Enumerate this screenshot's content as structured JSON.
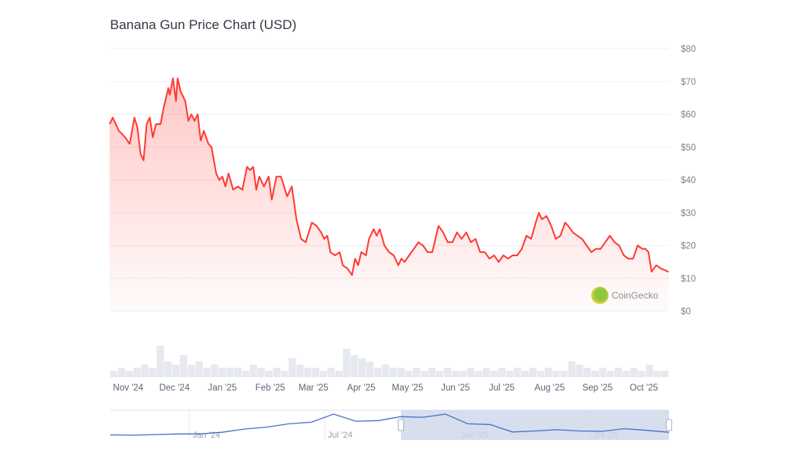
{
  "chart_data": {
    "type": "area",
    "title": "Banana Gun Price Chart (USD)",
    "ylim": [
      0,
      80
    ],
    "y_ticks": [
      "$0",
      "$10",
      "$20",
      "$30",
      "$40",
      "$50",
      "$60",
      "$70",
      "$80"
    ],
    "y_tick_values": [
      0,
      10,
      20,
      30,
      40,
      50,
      60,
      70,
      80
    ],
    "x_ticks": [
      {
        "label": "Nov '24",
        "date": "2024-11-01"
      },
      {
        "label": "Dec '24",
        "date": "2024-12-01"
      },
      {
        "label": "Jan '25",
        "date": "2025-01-01"
      },
      {
        "label": "Feb '25",
        "date": "2025-02-01"
      },
      {
        "label": "Mar '25",
        "date": "2025-03-01"
      },
      {
        "label": "Apr '25",
        "date": "2025-04-01"
      },
      {
        "label": "May '25",
        "date": "2025-05-01"
      },
      {
        "label": "Jun '25",
        "date": "2025-06-01"
      },
      {
        "label": "Jul '25",
        "date": "2025-07-01"
      },
      {
        "label": "Aug '25",
        "date": "2025-08-01"
      },
      {
        "label": "Sep '25",
        "date": "2025-09-01"
      },
      {
        "label": "Oct '25",
        "date": "2025-10-01"
      }
    ],
    "grid": true,
    "line_color": "#ff3a33",
    "volume_color": "#e6e9ee",
    "navigator_color": "#4a6fc6",
    "navigator_selection_color": "#cdd6ea",
    "series": [
      {
        "values": [
          [
            "2024-10-20",
            57
          ],
          [
            "2024-10-22",
            59
          ],
          [
            "2024-10-26",
            55
          ],
          [
            "2024-10-30",
            53
          ],
          [
            "2024-11-02",
            51
          ],
          [
            "2024-11-05",
            59
          ],
          [
            "2024-11-07",
            56
          ],
          [
            "2024-11-09",
            48
          ],
          [
            "2024-11-11",
            46
          ],
          [
            "2024-11-13",
            57
          ],
          [
            "2024-11-15",
            59
          ],
          [
            "2024-11-17",
            53
          ],
          [
            "2024-11-19",
            57
          ],
          [
            "2024-11-22",
            57
          ],
          [
            "2024-11-24",
            62
          ],
          [
            "2024-11-27",
            68
          ],
          [
            "2024-11-28",
            66
          ],
          [
            "2024-11-30",
            71
          ],
          [
            "2024-12-02",
            64
          ],
          [
            "2024-12-03",
            71
          ],
          [
            "2024-12-05",
            67
          ],
          [
            "2024-12-08",
            64
          ],
          [
            "2024-12-10",
            58
          ],
          [
            "2024-12-12",
            60
          ],
          [
            "2024-12-14",
            58
          ],
          [
            "2024-12-16",
            60
          ],
          [
            "2024-12-18",
            52
          ],
          [
            "2024-12-20",
            55
          ],
          [
            "2024-12-23",
            51
          ],
          [
            "2024-12-25",
            50
          ],
          [
            "2024-12-28",
            42
          ],
          [
            "2024-12-30",
            40
          ],
          [
            "2025-01-01",
            41
          ],
          [
            "2025-01-03",
            38
          ],
          [
            "2025-01-05",
            42
          ],
          [
            "2025-01-08",
            37
          ],
          [
            "2025-01-11",
            38
          ],
          [
            "2025-01-14",
            37
          ],
          [
            "2025-01-17",
            44
          ],
          [
            "2025-01-19",
            43
          ],
          [
            "2025-01-21",
            44
          ],
          [
            "2025-01-23",
            37
          ],
          [
            "2025-01-25",
            41
          ],
          [
            "2025-01-28",
            38
          ],
          [
            "2025-01-31",
            41
          ],
          [
            "2025-02-02",
            34
          ],
          [
            "2025-02-05",
            41
          ],
          [
            "2025-02-08",
            41
          ],
          [
            "2025-02-12",
            35
          ],
          [
            "2025-02-15",
            38
          ],
          [
            "2025-02-18",
            28
          ],
          [
            "2025-02-21",
            22
          ],
          [
            "2025-02-24",
            21
          ],
          [
            "2025-02-26",
            24
          ],
          [
            "2025-02-28",
            27
          ],
          [
            "2025-03-03",
            26
          ],
          [
            "2025-03-06",
            24
          ],
          [
            "2025-03-08",
            22
          ],
          [
            "2025-03-10",
            23
          ],
          [
            "2025-03-12",
            18
          ],
          [
            "2025-03-15",
            17
          ],
          [
            "2025-03-18",
            18
          ],
          [
            "2025-03-20",
            14
          ],
          [
            "2025-03-23",
            13
          ],
          [
            "2025-03-26",
            11
          ],
          [
            "2025-03-28",
            16
          ],
          [
            "2025-03-30",
            14
          ],
          [
            "2025-04-01",
            18
          ],
          [
            "2025-04-04",
            17
          ],
          [
            "2025-04-06",
            22
          ],
          [
            "2025-04-09",
            25
          ],
          [
            "2025-04-11",
            23
          ],
          [
            "2025-04-13",
            25
          ],
          [
            "2025-04-16",
            20
          ],
          [
            "2025-04-19",
            18
          ],
          [
            "2025-04-22",
            17
          ],
          [
            "2025-04-25",
            14
          ],
          [
            "2025-04-27",
            16
          ],
          [
            "2025-04-29",
            15
          ],
          [
            "2025-05-02",
            17
          ],
          [
            "2025-05-05",
            19
          ],
          [
            "2025-05-08",
            21
          ],
          [
            "2025-05-11",
            20
          ],
          [
            "2025-05-14",
            18
          ],
          [
            "2025-05-17",
            18
          ],
          [
            "2025-05-19",
            22
          ],
          [
            "2025-05-21",
            26
          ],
          [
            "2025-05-24",
            24
          ],
          [
            "2025-05-27",
            21
          ],
          [
            "2025-05-30",
            21
          ],
          [
            "2025-06-02",
            24
          ],
          [
            "2025-06-05",
            22
          ],
          [
            "2025-06-08",
            24
          ],
          [
            "2025-06-11",
            21
          ],
          [
            "2025-06-14",
            22
          ],
          [
            "2025-06-17",
            18
          ],
          [
            "2025-06-20",
            18
          ],
          [
            "2025-06-23",
            16
          ],
          [
            "2025-06-26",
            17
          ],
          [
            "2025-06-29",
            15
          ],
          [
            "2025-07-02",
            17
          ],
          [
            "2025-07-05",
            16
          ],
          [
            "2025-07-08",
            17
          ],
          [
            "2025-07-11",
            17
          ],
          [
            "2025-07-14",
            19
          ],
          [
            "2025-07-17",
            23
          ],
          [
            "2025-07-20",
            22
          ],
          [
            "2025-07-23",
            27
          ],
          [
            "2025-07-25",
            30
          ],
          [
            "2025-07-27",
            28
          ],
          [
            "2025-07-30",
            29
          ],
          [
            "2025-08-02",
            26
          ],
          [
            "2025-08-05",
            22
          ],
          [
            "2025-08-08",
            23
          ],
          [
            "2025-08-11",
            27
          ],
          [
            "2025-08-13",
            26
          ],
          [
            "2025-08-16",
            24
          ],
          [
            "2025-08-19",
            23
          ],
          [
            "2025-08-22",
            22
          ],
          [
            "2025-08-25",
            20
          ],
          [
            "2025-08-28",
            18
          ],
          [
            "2025-08-31",
            19
          ],
          [
            "2025-09-03",
            19
          ],
          [
            "2025-09-06",
            21
          ],
          [
            "2025-09-09",
            23
          ],
          [
            "2025-09-12",
            21
          ],
          [
            "2025-09-15",
            20
          ],
          [
            "2025-09-18",
            17
          ],
          [
            "2025-09-21",
            16
          ],
          [
            "2025-09-24",
            16
          ],
          [
            "2025-09-27",
            20
          ],
          [
            "2025-09-30",
            19
          ],
          [
            "2025-10-02",
            19
          ],
          [
            "2025-10-04",
            18
          ],
          [
            "2025-10-06",
            12
          ],
          [
            "2025-10-09",
            14
          ],
          [
            "2025-10-12",
            13
          ],
          [
            "2025-10-17",
            12
          ]
        ]
      }
    ],
    "volume_relative": [
      2,
      3,
      2,
      3,
      4,
      3,
      10,
      5,
      4,
      7,
      4,
      5,
      3,
      4,
      3,
      3,
      3,
      2,
      4,
      3,
      2,
      3,
      2,
      6,
      4,
      3,
      3,
      2,
      3,
      2,
      9,
      7,
      6,
      5,
      3,
      4,
      3,
      3,
      2,
      3,
      2,
      3,
      2,
      3,
      2,
      2,
      3,
      2,
      3,
      2,
      3,
      2,
      3,
      2,
      3,
      2,
      3,
      2,
      2,
      5,
      4,
      3,
      2,
      3,
      2,
      3,
      2,
      3,
      2,
      4,
      2,
      2
    ],
    "navigator": {
      "ticks": [
        "Jan '24",
        "Jul '24",
        "Jan '25",
        "Jul '25"
      ],
      "values": [
        6,
        5,
        7,
        9,
        9,
        14,
        24,
        30,
        40,
        45,
        70,
        48,
        50,
        62,
        60,
        70,
        40,
        38,
        15,
        18,
        22,
        18,
        17,
        25,
        20,
        14
      ]
    },
    "watermark": "CoinGecko"
  }
}
